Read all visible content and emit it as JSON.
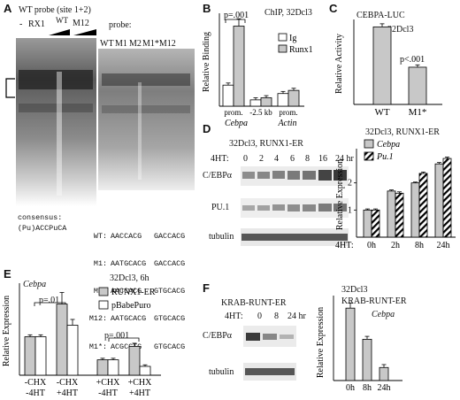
{
  "panels": {
    "A": {
      "letter": "A",
      "title": "WT probe (site 1+2)",
      "lanes_left": [
        "-",
        "RX1",
        "WT",
        "M12"
      ],
      "probe_label": "probe:",
      "lanes_right": [
        "WT",
        "M1",
        "M2",
        "M1*M12"
      ],
      "consensus": {
        "left1": "consensus:",
        "left2": "(Pu)ACCPuCA",
        "rows": [
          {
            "name": "WT:",
            "seq1": "AACCACG",
            "seq2": "GACCACG"
          },
          {
            "name": "M1:",
            "seq1": "AATGCACG",
            "seq2": "GACCACG"
          },
          {
            "name": "M2:",
            "seq1": "AACCACG",
            "seq2": "GTGCACG"
          },
          {
            "name": "M12:",
            "seq1": "AATGCACG",
            "seq2": "GTGCACG"
          },
          {
            "name": "M1*:",
            "seq1": "ACGCCTG",
            "seq2": "GTGCACG"
          }
        ]
      }
    },
    "B": {
      "letter": "B",
      "header": "ChIP, 32Dcl3",
      "pvalue": "p=.001"
    },
    "C": {
      "letter": "C",
      "title": "CEBPA-LUC",
      "subtitle": "32Dcl3",
      "pvalue": "p<.001"
    },
    "D": {
      "letter": "D",
      "blot_title": "32Dcl3, RUNX1-ER",
      "time_label": "4HT:",
      "times": [
        "0",
        "2",
        "4",
        "6",
        "8",
        "16",
        "24 hr"
      ],
      "rows": [
        "C/EBPα",
        "PU.1",
        "tubulin"
      ],
      "chart_title": "32Dcl3, RUNX1-ER"
    },
    "E": {
      "letter": "E",
      "title": "32Dcl3, 6h",
      "gene": "Cebpa",
      "p1": "p=.01",
      "p2": "p=.001"
    },
    "F": {
      "letter": "F",
      "blot_title": "KRAB-RUNT-ER",
      "time_label": "4HT:",
      "times": [
        "0",
        "8",
        "24 hr"
      ],
      "rows": [
        "C/EBPα",
        "tubulin"
      ],
      "chart_title1": "32Dcl3",
      "chart_title2": "KRAB-RUNT-ER",
      "gene": "Cebpa"
    }
  },
  "chart_data": [
    {
      "id": "B",
      "type": "bar",
      "ylabel": "Relative Binding",
      "categories": [
        "prom.",
        "-2.5 kb",
        "prom."
      ],
      "groups": [
        "Cebpa",
        "Actin"
      ],
      "series": [
        {
          "name": "Ig",
          "values": [
            1.0,
            0.3,
            0.6
          ],
          "errors": [
            0.1,
            0.1,
            0.1
          ],
          "color": "#ffffff"
        },
        {
          "name": "Runx1",
          "values": [
            3.8,
            0.4,
            0.75
          ],
          "errors": [
            0.35,
            0.1,
            0.1
          ],
          "color": "#c8c8c8"
        }
      ],
      "ylim": [
        0,
        4.2
      ],
      "legend": "right"
    },
    {
      "id": "C",
      "type": "bar",
      "ylabel": "Relative Activity",
      "categories": [
        "WT",
        "M1*"
      ],
      "values": [
        1.0,
        0.48
      ],
      "errors": [
        0.04,
        0.03
      ],
      "color": "#c8c8c8",
      "ylim": [
        0,
        1.05
      ]
    },
    {
      "id": "D",
      "type": "bar",
      "ylabel": "Relative Expression",
      "xlabel": "4HT:",
      "categories": [
        "0h",
        "2h",
        "8h",
        "24h"
      ],
      "yticks": [
        "1",
        "2"
      ],
      "series": [
        {
          "name": "Cebpa",
          "values": [
            1.0,
            1.7,
            2.0,
            2.7
          ],
          "errors": [
            0.04,
            0.04,
            0.03,
            0.05
          ],
          "color": "#c8c8c8"
        },
        {
          "name": "Pu.1",
          "values": [
            1.0,
            1.62,
            2.35,
            2.9
          ],
          "errors": [
            0.04,
            0.05,
            0.05,
            0.05
          ],
          "color": "hatch"
        }
      ],
      "ylim": [
        0,
        3.0
      ],
      "legend": "top-left"
    },
    {
      "id": "E",
      "type": "bar",
      "ylabel": "Relative Expression",
      "categories": [
        "-CHX\n-4HT",
        "-CHX\n+4HT",
        "+CHX\n-4HT",
        "+CHX\n+4HT"
      ],
      "series": [
        {
          "name": "RUNX1-ER",
          "values": [
            1.0,
            1.85,
            0.4,
            0.75
          ],
          "errors": [
            0.05,
            0.3,
            0.04,
            0.08
          ],
          "color": "#c8c8c8"
        },
        {
          "name": "pBabePuro",
          "values": [
            1.0,
            1.3,
            0.4,
            0.23
          ],
          "errors": [
            0.05,
            0.15,
            0.04,
            0.04
          ],
          "color": "#ffffff"
        }
      ],
      "ylim": [
        0,
        2.3
      ],
      "legend": "top-right"
    },
    {
      "id": "F",
      "type": "bar",
      "ylabel": "Relative Expression",
      "categories": [
        "0h",
        "8h",
        "24h"
      ],
      "values": [
        1.0,
        0.57,
        0.18
      ],
      "errors": [
        0.07,
        0.04,
        0.04
      ],
      "color": "#c8c8c8",
      "ylim": [
        0,
        1.1
      ]
    }
  ]
}
